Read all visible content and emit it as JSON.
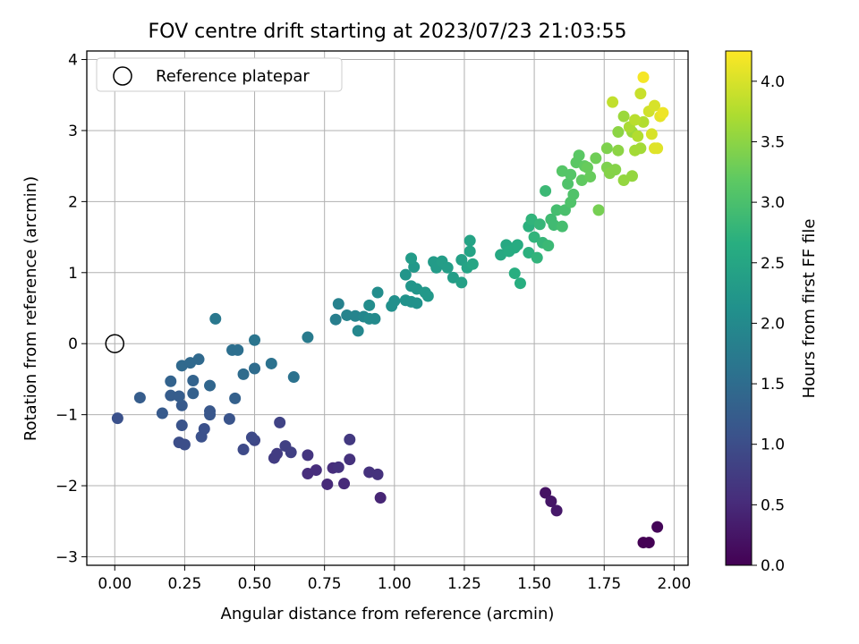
{
  "chart_data": {
    "type": "scatter",
    "title": "FOV centre drift starting at 2023/07/23 21:03:55",
    "xlabel": "Angular distance from reference (arcmin)",
    "ylabel": "Rotation from reference (arcmin)",
    "xlim": [
      -0.1,
      2.05
    ],
    "ylim": [
      -3.12,
      4.12
    ],
    "xticks": [
      "0.00",
      "0.25",
      "0.50",
      "0.75",
      "1.00",
      "1.25",
      "1.50",
      "1.75",
      "2.00"
    ],
    "xtick_values": [
      0,
      0.25,
      0.5,
      0.75,
      1.0,
      1.25,
      1.5,
      1.75,
      2.0
    ],
    "yticks": [
      "−3",
      "−2",
      "−1",
      "0",
      "1",
      "2",
      "3",
      "4"
    ],
    "ytick_values": [
      -3,
      -2,
      -1,
      0,
      1,
      2,
      3,
      4
    ],
    "grid": true,
    "legend": {
      "position": "upper-left",
      "entries": [
        "Reference platepar"
      ]
    },
    "reference_point": {
      "x": 0.0,
      "y": 0.0
    },
    "colorbar": {
      "label": "Hours from first FF file",
      "colormap": "viridis",
      "range": [
        0,
        4.25
      ],
      "ticks": [
        "0.0",
        "0.5",
        "1.0",
        "1.5",
        "2.0",
        "2.5",
        "3.0",
        "3.5",
        "4.0"
      ],
      "tick_values": [
        0,
        0.5,
        1.0,
        1.5,
        2.0,
        2.5,
        3.0,
        3.5,
        4.0
      ]
    },
    "points": [
      [
        1.89,
        -2.8,
        0.0
      ],
      [
        1.91,
        -2.8,
        0.0
      ],
      [
        1.94,
        -2.58,
        0.05
      ],
      [
        1.54,
        -2.1,
        0.2
      ],
      [
        1.56,
        -2.22,
        0.25
      ],
      [
        1.58,
        -2.35,
        0.28
      ],
      [
        0.95,
        -2.17,
        0.45
      ],
      [
        0.76,
        -1.98,
        0.5
      ],
      [
        0.82,
        -1.97,
        0.5
      ],
      [
        0.69,
        -1.83,
        0.55
      ],
      [
        0.72,
        -1.78,
        0.55
      ],
      [
        0.78,
        -1.75,
        0.55
      ],
      [
        0.8,
        -1.74,
        0.6
      ],
      [
        0.91,
        -1.81,
        0.6
      ],
      [
        0.94,
        -1.84,
        0.6
      ],
      [
        0.84,
        -1.63,
        0.6
      ],
      [
        0.69,
        -1.57,
        0.65
      ],
      [
        0.84,
        -1.35,
        0.7
      ],
      [
        0.57,
        -1.61,
        0.75
      ],
      [
        0.58,
        -1.55,
        0.75
      ],
      [
        0.61,
        -1.44,
        0.8
      ],
      [
        0.63,
        -1.53,
        0.8
      ],
      [
        0.59,
        -1.11,
        0.85
      ],
      [
        0.5,
        -1.36,
        0.9
      ],
      [
        0.49,
        -1.32,
        0.95
      ],
      [
        0.46,
        -1.49,
        0.95
      ],
      [
        0.23,
        -1.39,
        1.0
      ],
      [
        0.25,
        -1.42,
        1.0
      ],
      [
        0.31,
        -1.31,
        1.05
      ],
      [
        0.32,
        -1.2,
        1.05
      ],
      [
        0.01,
        -1.05,
        1.05
      ],
      [
        0.24,
        -1.15,
        1.1
      ],
      [
        0.34,
        -1.0,
        1.15
      ],
      [
        0.34,
        -0.95,
        1.15
      ],
      [
        0.41,
        -1.06,
        1.1
      ],
      [
        0.17,
        -0.98,
        1.2
      ],
      [
        0.24,
        -0.87,
        1.2
      ],
      [
        0.2,
        -0.73,
        1.25
      ],
      [
        0.23,
        -0.74,
        1.25
      ],
      [
        0.09,
        -0.76,
        1.25
      ],
      [
        0.28,
        -0.7,
        1.3
      ],
      [
        0.43,
        -0.77,
        1.3
      ],
      [
        0.2,
        -0.53,
        1.35
      ],
      [
        0.28,
        -0.52,
        1.35
      ],
      [
        0.34,
        -0.59,
        1.4
      ],
      [
        0.24,
        -0.31,
        1.45
      ],
      [
        0.27,
        -0.27,
        1.45
      ],
      [
        0.3,
        -0.22,
        1.45
      ],
      [
        0.46,
        -0.43,
        1.5
      ],
      [
        0.5,
        -0.35,
        1.5
      ],
      [
        0.42,
        -0.09,
        1.55
      ],
      [
        0.44,
        -0.09,
        1.55
      ],
      [
        0.56,
        -0.28,
        1.6
      ],
      [
        0.64,
        -0.47,
        1.6
      ],
      [
        0.5,
        0.05,
        1.65
      ],
      [
        0.36,
        0.35,
        1.7
      ],
      [
        0.69,
        0.09,
        1.75
      ],
      [
        0.79,
        0.34,
        1.8
      ],
      [
        0.8,
        0.56,
        1.85
      ],
      [
        0.83,
        0.4,
        1.9
      ],
      [
        0.86,
        0.39,
        1.9
      ],
      [
        0.87,
        0.18,
        1.95
      ],
      [
        0.89,
        0.38,
        1.95
      ],
      [
        0.91,
        0.35,
        2.0
      ],
      [
        0.93,
        0.35,
        2.0
      ],
      [
        0.91,
        0.54,
        2.05
      ],
      [
        0.94,
        0.72,
        2.05
      ],
      [
        0.99,
        0.53,
        2.1
      ],
      [
        1.0,
        0.6,
        2.1
      ],
      [
        1.04,
        0.61,
        2.15
      ],
      [
        1.06,
        0.59,
        2.15
      ],
      [
        1.08,
        0.57,
        2.15
      ],
      [
        1.04,
        0.97,
        2.2
      ],
      [
        1.06,
        0.81,
        2.2
      ],
      [
        1.08,
        0.77,
        2.2
      ],
      [
        1.11,
        0.72,
        2.25
      ],
      [
        1.12,
        0.67,
        2.25
      ],
      [
        1.07,
        1.08,
        2.25
      ],
      [
        1.06,
        1.2,
        2.3
      ],
      [
        1.14,
        1.15,
        2.3
      ],
      [
        1.15,
        1.07,
        2.3
      ],
      [
        1.17,
        1.16,
        2.35
      ],
      [
        1.19,
        1.07,
        2.35
      ],
      [
        1.21,
        0.93,
        2.35
      ],
      [
        1.24,
        0.86,
        2.4
      ],
      [
        1.24,
        1.18,
        2.4
      ],
      [
        1.26,
        1.07,
        2.45
      ],
      [
        1.27,
        1.3,
        2.45
      ],
      [
        1.27,
        1.45,
        2.45
      ],
      [
        1.28,
        1.12,
        2.5
      ],
      [
        1.38,
        1.25,
        2.55
      ],
      [
        1.4,
        1.39,
        2.55
      ],
      [
        1.41,
        1.3,
        2.6
      ],
      [
        1.43,
        1.35,
        2.6
      ],
      [
        1.44,
        1.39,
        2.6
      ],
      [
        1.43,
        0.99,
        2.65
      ],
      [
        1.45,
        0.85,
        2.65
      ],
      [
        1.48,
        1.28,
        2.7
      ],
      [
        1.48,
        1.65,
        2.7
      ],
      [
        1.49,
        1.75,
        2.75
      ],
      [
        1.5,
        1.5,
        2.75
      ],
      [
        1.51,
        1.21,
        2.75
      ],
      [
        1.52,
        1.68,
        2.8
      ],
      [
        1.53,
        1.42,
        2.8
      ],
      [
        1.55,
        1.38,
        2.85
      ],
      [
        1.54,
        2.15,
        2.85
      ],
      [
        1.56,
        1.75,
        2.9
      ],
      [
        1.57,
        1.67,
        2.9
      ],
      [
        1.58,
        1.88,
        2.95
      ],
      [
        1.6,
        1.65,
        2.95
      ],
      [
        1.61,
        1.88,
        3.0
      ],
      [
        1.62,
        2.25,
        3.05
      ],
      [
        1.63,
        1.99,
        3.05
      ],
      [
        1.64,
        2.1,
        3.05
      ],
      [
        1.6,
        2.43,
        3.1
      ],
      [
        1.63,
        2.38,
        3.1
      ],
      [
        1.65,
        2.55,
        3.15
      ],
      [
        1.66,
        2.65,
        3.15
      ],
      [
        1.67,
        2.3,
        3.2
      ],
      [
        1.68,
        2.5,
        3.2
      ],
      [
        1.69,
        2.48,
        3.25
      ],
      [
        1.7,
        2.35,
        3.25
      ],
      [
        1.72,
        2.61,
        3.3
      ],
      [
        1.73,
        1.88,
        3.35
      ],
      [
        1.76,
        2.48,
        3.4
      ],
      [
        1.76,
        2.75,
        3.4
      ],
      [
        1.77,
        2.4,
        3.45
      ],
      [
        1.79,
        2.45,
        3.45
      ],
      [
        1.8,
        2.72,
        3.5
      ],
      [
        1.8,
        2.98,
        3.5
      ],
      [
        1.82,
        2.3,
        3.55
      ],
      [
        1.85,
        2.36,
        3.55
      ],
      [
        1.82,
        3.2,
        3.6
      ],
      [
        1.85,
        2.98,
        3.6
      ],
      [
        1.86,
        2.72,
        3.65
      ],
      [
        1.88,
        2.75,
        3.65
      ],
      [
        1.84,
        3.05,
        3.7
      ],
      [
        1.87,
        2.92,
        3.75
      ],
      [
        1.89,
        3.12,
        3.75
      ],
      [
        1.86,
        3.15,
        3.8
      ],
      [
        1.78,
        3.4,
        3.85
      ],
      [
        1.88,
        3.52,
        3.9
      ],
      [
        1.91,
        3.27,
        3.95
      ],
      [
        1.93,
        3.35,
        4.0
      ],
      [
        1.92,
        2.95,
        4.0
      ],
      [
        1.94,
        2.75,
        4.05
      ],
      [
        1.93,
        2.75,
        4.05
      ],
      [
        1.95,
        3.2,
        4.1
      ],
      [
        1.96,
        3.25,
        4.15
      ],
      [
        1.89,
        3.75,
        4.2
      ]
    ]
  }
}
